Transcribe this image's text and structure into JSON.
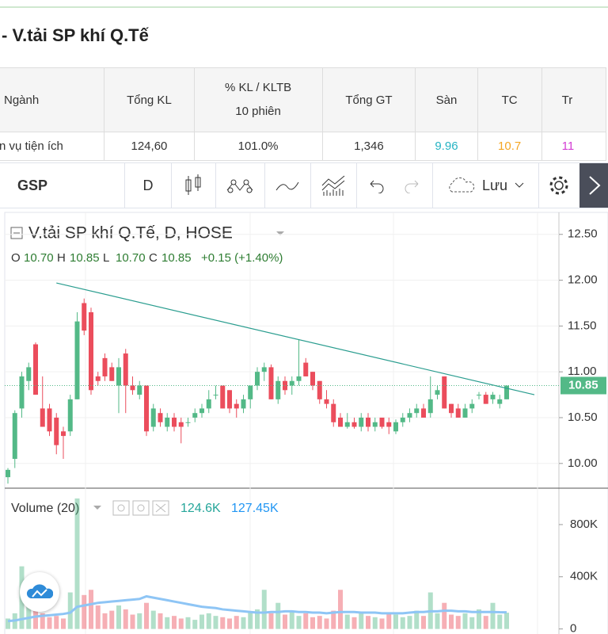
{
  "header": {
    "title": "- V.tải SP khí Q.Tế"
  },
  "table": {
    "columns": [
      "Ngành",
      "Tổng KL",
      "% KL / KLTB",
      "Tổng GT",
      "Sàn",
      "TC",
      "Tr"
    ],
    "pct_column_note": "10 phiên",
    "row": [
      "n vụ tiện ích",
      "124,60",
      "101.0%",
      "1,346",
      "9.96",
      "10.7",
      "11"
    ],
    "row_colors": [
      "#333333",
      "#333333",
      "#333333",
      "#333333",
      "#27b4c4",
      "#f5a623",
      "#d43fd4"
    ]
  },
  "toolbar": {
    "symbol": "GSP",
    "interval": "D",
    "save": "Lưu"
  },
  "chart_data": {
    "type": "candlestick",
    "title": "V.tải SP khí Q.Tế, D, HOSE",
    "ohlc_legend": [
      {
        "name": "O",
        "value": "10.70"
      },
      {
        "name": "H",
        "value": "10.85"
      },
      {
        "name": "L",
        "value": "10.70"
      },
      {
        "name": "C",
        "value": "10.85"
      }
    ],
    "change": "+0.15 (+1.40%)",
    "last_price_label": "10.85",
    "up_color": "#53b987",
    "down_color": "#eb4d5c",
    "open": [
      9.85,
      10.05,
      10.6,
      10.9,
      11.3,
      10.6,
      10.6,
      10.5,
      10.35,
      10.35,
      10.7,
      11.75,
      11.65,
      10.95,
      11.15,
      11.05,
      10.85,
      11.2,
      10.85,
      10.75,
      10.85,
      10.4,
      10.55,
      10.4,
      10.5,
      10.45,
      10.45,
      10.5,
      10.55,
      10.6,
      10.75,
      10.85,
      10.8,
      10.65,
      10.6,
      10.7,
      10.85,
      11.0,
      11.05,
      10.7,
      10.9,
      10.85,
      10.9,
      11.1,
      11.0,
      10.9,
      10.7,
      10.65,
      10.5,
      10.4,
      10.45,
      10.4,
      10.5,
      10.4,
      10.5,
      10.45,
      10.35,
      10.45,
      10.5,
      10.55,
      10.6,
      10.55,
      10.75,
      10.95,
      10.65,
      10.6,
      10.5,
      10.6,
      10.75,
      10.75,
      10.7,
      10.65,
      10.7
    ],
    "high": [
      9.95,
      10.58,
      11.0,
      11.1,
      11.32,
      10.95,
      10.65,
      10.55,
      10.4,
      10.75,
      11.65,
      11.8,
      11.7,
      11.0,
      11.2,
      11.1,
      11.15,
      11.25,
      10.95,
      10.9,
      10.85,
      10.65,
      10.6,
      10.55,
      10.55,
      10.5,
      10.5,
      10.6,
      10.65,
      10.8,
      10.85,
      10.85,
      10.8,
      10.7,
      10.75,
      10.85,
      11.05,
      11.1,
      11.08,
      10.95,
      10.95,
      10.95,
      11.35,
      11.15,
      11.0,
      10.9,
      10.8,
      10.7,
      10.55,
      10.55,
      10.5,
      10.55,
      10.55,
      10.5,
      10.5,
      10.5,
      10.48,
      10.55,
      10.6,
      10.65,
      10.65,
      10.95,
      10.85,
      10.95,
      10.65,
      10.65,
      10.65,
      10.7,
      10.78,
      10.78,
      10.78,
      10.75,
      10.85
    ],
    "low": [
      9.78,
      9.95,
      10.5,
      10.8,
      10.75,
      10.4,
      10.3,
      10.1,
      10.05,
      10.3,
      10.7,
      11.4,
      10.75,
      10.85,
      10.9,
      10.9,
      10.55,
      10.55,
      10.75,
      10.7,
      10.3,
      10.35,
      10.4,
      10.35,
      10.35,
      10.22,
      10.4,
      10.45,
      10.5,
      10.55,
      10.7,
      10.6,
      10.55,
      10.5,
      10.55,
      10.6,
      10.8,
      10.9,
      10.7,
      10.65,
      10.75,
      10.75,
      10.85,
      10.95,
      10.8,
      10.65,
      10.6,
      10.4,
      10.4,
      10.38,
      10.38,
      10.35,
      10.35,
      10.35,
      10.38,
      10.32,
      10.32,
      10.4,
      10.45,
      10.5,
      10.5,
      10.5,
      10.7,
      10.6,
      10.5,
      10.5,
      10.5,
      10.55,
      10.7,
      10.65,
      10.65,
      10.6,
      10.7
    ],
    "close": [
      9.93,
      10.55,
      10.95,
      11.05,
      10.75,
      10.4,
      10.35,
      10.2,
      10.3,
      10.7,
      11.55,
      11.45,
      10.8,
      10.9,
      10.95,
      10.9,
      11.05,
      10.85,
      10.8,
      10.85,
      10.35,
      10.6,
      10.45,
      10.5,
      10.4,
      10.4,
      10.45,
      10.55,
      10.6,
      10.7,
      10.75,
      10.6,
      10.6,
      10.6,
      10.7,
      10.85,
      11.0,
      11.05,
      10.7,
      10.9,
      10.8,
      10.9,
      10.95,
      10.95,
      10.85,
      10.7,
      10.65,
      10.45,
      10.4,
      10.45,
      10.4,
      10.5,
      10.4,
      10.45,
      10.4,
      10.4,
      10.45,
      10.5,
      10.55,
      10.6,
      10.5,
      10.7,
      10.8,
      10.6,
      10.55,
      10.5,
      10.6,
      10.65,
      10.75,
      10.65,
      10.75,
      10.7,
      10.85
    ],
    "ylim": [
      9.73,
      12.74
    ],
    "yticks": [
      {
        "value": 12.5,
        "label": "12.50"
      },
      {
        "value": 12,
        "label": "12.00"
      },
      {
        "value": 11.5,
        "label": "11.50"
      },
      {
        "value": 11,
        "label": "11.00"
      },
      {
        "value": 10.5,
        "label": "10.50"
      },
      {
        "value": 10,
        "label": "10.00"
      }
    ],
    "trendline": {
      "start_index": 7,
      "start_price": 11.97,
      "end_index": 76,
      "end_price": 10.75,
      "color": "#2a9d8f"
    },
    "volume_title": "Volume (20)",
    "volume_value": "124.6K",
    "volume_ma_value": "127.45K",
    "volume_ma_color": "#8ec5f5",
    "volume": [
      80000,
      120000,
      480000,
      300000,
      150000,
      120000,
      90000,
      100000,
      80000,
      280000,
      1000000,
      260000,
      300000,
      180000,
      120000,
      140000,
      180000,
      150000,
      110000,
      120000,
      200000,
      140000,
      120000,
      90000,
      100000,
      80000,
      90000,
      70000,
      110000,
      120000,
      100000,
      90000,
      80000,
      100000,
      90000,
      130000,
      150000,
      300000,
      120000,
      200000,
      110000,
      130000,
      100000,
      120000,
      90000,
      100000,
      80000,
      140000,
      300000,
      110000,
      90000,
      120000,
      100000,
      90000,
      80000,
      120000,
      110000,
      90000,
      100000,
      140000,
      100000,
      280000,
      120000,
      200000,
      110000,
      100000,
      120000,
      90000,
      150000,
      100000,
      200000,
      110000,
      124600
    ],
    "volume_ma": [
      60000,
      65000,
      75000,
      85000,
      95000,
      100000,
      105000,
      110000,
      115000,
      125000,
      170000,
      180000,
      190000,
      200000,
      205000,
      210000,
      215000,
      220000,
      225000,
      230000,
      250000,
      240000,
      230000,
      220000,
      210000,
      200000,
      190000,
      180000,
      170000,
      165000,
      160000,
      150000,
      145000,
      140000,
      135000,
      130000,
      125000,
      125000,
      130000,
      130000,
      135000,
      135000,
      130000,
      130000,
      125000,
      125000,
      120000,
      125000,
      130000,
      130000,
      130000,
      125000,
      125000,
      125000,
      120000,
      120000,
      120000,
      120000,
      125000,
      130000,
      130000,
      135000,
      135000,
      140000,
      140000,
      135000,
      135000,
      130000,
      130000,
      130000,
      130000,
      128000,
      127450
    ],
    "vlim": [
      -38700,
      1006000
    ],
    "vticks": [
      {
        "value": 800000,
        "label": "800K"
      },
      {
        "value": 400000,
        "label": "400K"
      },
      0
    ]
  }
}
